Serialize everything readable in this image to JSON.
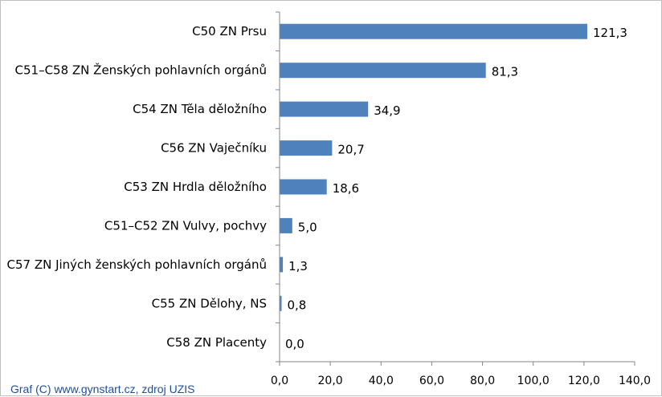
{
  "chart_data": {
    "type": "bar",
    "orientation": "horizontal",
    "categories": [
      "C50 ZN Prsu",
      "C51–C58 ZN Ženských pohlavních orgánů",
      "C54 ZN Těla děložního",
      "C56 ZN Vaječníku",
      "C53 ZN Hrdla děložního",
      "C51–C52 ZN Vulvy, pochvy",
      "C57 ZN Jiných ženských pohlavních orgánů",
      "C55 ZN Dělohy, NS",
      "C58 ZN Placenty"
    ],
    "values": [
      121.3,
      81.3,
      34.9,
      20.7,
      18.6,
      5.0,
      1.3,
      0.8,
      0.0
    ],
    "value_labels": [
      "121,3",
      "81,3",
      "34,9",
      "20,7",
      "18,6",
      "5,0",
      "1,3",
      "0,8",
      "0,0"
    ],
    "xlim": [
      0,
      140
    ],
    "x_ticks": [
      0,
      20,
      40,
      60,
      80,
      100,
      120,
      140
    ],
    "x_tick_labels": [
      "0,0",
      "20,0",
      "40,0",
      "60,0",
      "80,0",
      "100,0",
      "120,0",
      "140,0"
    ],
    "title": "",
    "xlabel": "",
    "ylabel": "",
    "grid": false,
    "legend": "none",
    "bar_color": "#4f81bd"
  },
  "footer": {
    "credit": "Graf (C) www.gynstart.cz, zdroj UZIS"
  },
  "colors": {
    "axis": "#868686",
    "credit_text": "#1f4e9e",
    "border": "#bfbfbf"
  }
}
